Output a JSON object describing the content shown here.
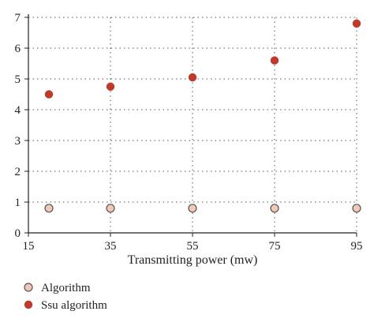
{
  "chart_data": {
    "type": "scatter",
    "xlabel": "Transmitting power (mw)",
    "ylabel": "",
    "xlim": [
      15,
      95
    ],
    "ylim": [
      0,
      7
    ],
    "xticks": [
      15,
      35,
      55,
      75,
      95
    ],
    "yticks": [
      0,
      1,
      2,
      3,
      4,
      5,
      6,
      7
    ],
    "grid": true,
    "legend_position": "bottom-left",
    "series": [
      {
        "name": "Algorithm",
        "color": "#f0c8b8",
        "edge_color": "#555555",
        "points": [
          {
            "x": 20,
            "y": 0.8
          },
          {
            "x": 35,
            "y": 0.8
          },
          {
            "x": 55,
            "y": 0.8
          },
          {
            "x": 75,
            "y": 0.8
          },
          {
            "x": 95,
            "y": 0.8
          }
        ]
      },
      {
        "name": "Ssu algorithm",
        "color": "#c0392b",
        "edge_color": "#c0392b",
        "points": [
          {
            "x": 20,
            "y": 4.5
          },
          {
            "x": 35,
            "y": 4.75
          },
          {
            "x": 55,
            "y": 5.05
          },
          {
            "x": 75,
            "y": 5.6
          },
          {
            "x": 95,
            "y": 6.8
          }
        ]
      }
    ]
  }
}
